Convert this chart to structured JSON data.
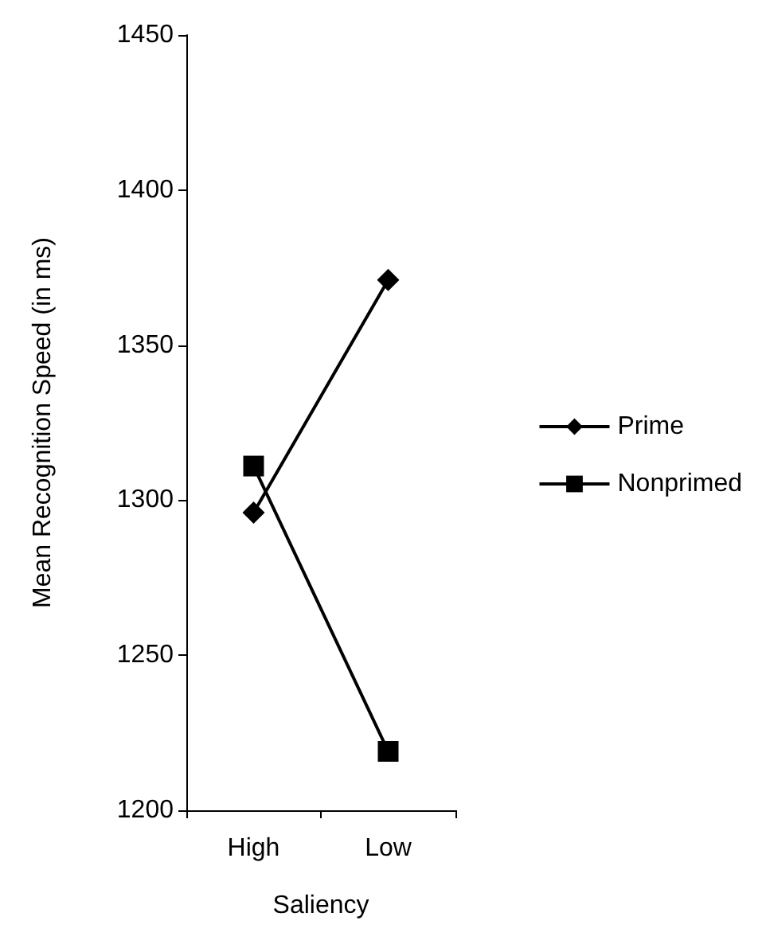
{
  "chart_data": {
    "type": "line",
    "xlabel": "Saliency",
    "ylabel": "Mean Recognition Speed (in ms)",
    "categories": [
      "High",
      "Low"
    ],
    "series": [
      {
        "name": "Prime",
        "color": "#000000",
        "marker": "diamond",
        "values": [
          1296,
          1371
        ]
      },
      {
        "name": "Nonprimed",
        "color": "#000000",
        "marker": "square",
        "values": [
          1311,
          1219
        ]
      }
    ],
    "ylim": [
      1200,
      1450
    ],
    "yticks": [
      1200,
      1250,
      1300,
      1350,
      1400,
      1450
    ],
    "grid": false,
    "legend": "right",
    "line_style": "solid"
  }
}
